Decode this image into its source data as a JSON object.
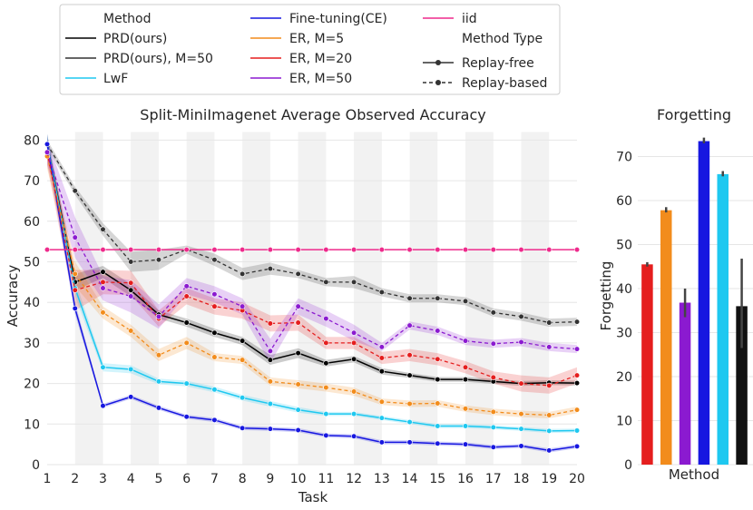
{
  "legend": {
    "method_header": "Method",
    "type_header": "Method Type",
    "replay_free": "Replay-free",
    "replay_based": "Replay-based"
  },
  "chart_data": [
    {
      "type": "line",
      "title": "Split-MiniImagenet Average Observed Accuracy",
      "xlabel": "Task",
      "ylabel": "Accuracy",
      "xlim": [
        1,
        20
      ],
      "ylim": [
        0,
        82
      ],
      "x_ticks": [
        1,
        2,
        3,
        4,
        5,
        6,
        7,
        8,
        9,
        10,
        11,
        12,
        13,
        14,
        15,
        16,
        17,
        18,
        19,
        20
      ],
      "y_ticks": [
        0,
        10,
        20,
        30,
        40,
        50,
        60,
        70,
        80
      ],
      "x": [
        1,
        2,
        3,
        4,
        5,
        6,
        7,
        8,
        9,
        10,
        11,
        12,
        13,
        14,
        15,
        16,
        17,
        18,
        19,
        20
      ],
      "series": [
        {
          "name": "PRD(ours)",
          "color": "#000000",
          "style": "solid",
          "values": [
            79,
            45,
            47.5,
            43,
            37,
            35,
            32.5,
            30.5,
            25.8,
            27.5,
            25,
            26,
            23,
            22,
            21,
            21,
            20.5,
            20,
            20.2,
            20.1
          ],
          "band": [
            2.5,
            2,
            1.5,
            1.5,
            1,
            1,
            1,
            1,
            1.2,
            1.2,
            0.8,
            0.8,
            0.8,
            0.6,
            0.6,
            0.6,
            0.6,
            0.6,
            0.6,
            0.6
          ]
        },
        {
          "name": "PRD(ours), M=50",
          "color": "#333333",
          "style": "dashed",
          "values": [
            79,
            67.5,
            58,
            50,
            50.5,
            53,
            50.5,
            47,
            48.3,
            47,
            45,
            45,
            42.5,
            41,
            41,
            40.3,
            37.5,
            36.5,
            35,
            35.2
          ],
          "band": [
            1,
            1,
            1.5,
            2.5,
            2.5,
            1,
            1.5,
            1.5,
            1.5,
            1,
            1,
            1.5,
            1,
            1,
            1,
            1,
            1,
            1,
            1,
            1
          ]
        },
        {
          "name": "LwF",
          "color": "#1ec8f0",
          "style": "solid",
          "values": [
            79,
            43.5,
            24,
            23.5,
            20.5,
            20,
            18.5,
            16.5,
            15,
            13.5,
            12.5,
            12.5,
            11.5,
            10.5,
            9.5,
            9.5,
            9.2,
            8.8,
            8.3,
            8.4
          ],
          "band": [
            2.5,
            2,
            1,
            1,
            0.7,
            0.7,
            0.7,
            0.7,
            0.7,
            0.7,
            0.5,
            0.5,
            0.5,
            0.5,
            0.5,
            0.5,
            0.5,
            0.5,
            0.5,
            0.5
          ]
        },
        {
          "name": "Fine-tuning(CE)",
          "color": "#1717e0",
          "style": "solid",
          "values": [
            79,
            38.5,
            14.5,
            16.7,
            14,
            11.8,
            11,
            9,
            8.8,
            8.5,
            7.2,
            7,
            5.5,
            5.5,
            5.2,
            5,
            4.3,
            4.6,
            3.5,
            4.5
          ],
          "band": [
            2.5,
            1.5,
            0.5,
            0.5,
            0.5,
            0.5,
            0.5,
            0.5,
            0.5,
            0.5,
            0.5,
            0.5,
            0.5,
            0.5,
            0.5,
            0.5,
            0.5,
            0.5,
            0.5,
            0.5
          ]
        },
        {
          "name": "ER, M=5",
          "color": "#f28c1c",
          "style": "dashed",
          "values": [
            76,
            47,
            37.5,
            33,
            27,
            30,
            26.5,
            25.8,
            20.5,
            19.8,
            19,
            18,
            15.5,
            15,
            15.1,
            13.8,
            13,
            12.5,
            12.2,
            13.5
          ],
          "band": [
            3,
            3,
            1.5,
            1.5,
            1.5,
            1.5,
            1,
            1,
            1,
            1,
            1,
            1,
            0.8,
            0.8,
            0.8,
            0.8,
            0.8,
            0.8,
            0.8,
            0.8
          ]
        },
        {
          "name": "ER, M=20",
          "color": "#e51e1e",
          "style": "dashed",
          "values": [
            77,
            43,
            45,
            44.8,
            36,
            41.5,
            39,
            38,
            34.8,
            35,
            30,
            30,
            26.3,
            27,
            26,
            24,
            21.5,
            20,
            19.5,
            22
          ],
          "band": [
            3,
            5,
            3,
            3,
            2,
            2,
            2,
            2,
            2,
            2,
            1.5,
            1.5,
            1.5,
            1.5,
            1.5,
            1.5,
            1.5,
            2,
            2,
            2
          ]
        },
        {
          "name": "ER, M=50",
          "color": "#8b1ad0",
          "style": "dashed",
          "values": [
            77,
            56,
            43.5,
            41.5,
            36.5,
            44,
            42,
            39,
            28,
            39,
            36,
            32.5,
            29,
            34.3,
            33,
            30.5,
            29.8,
            30.2,
            29,
            28.5
          ],
          "band": [
            3,
            5,
            3,
            4,
            3,
            2,
            2,
            2,
            3,
            2,
            2,
            2,
            1,
            1,
            1,
            1,
            1,
            1,
            1,
            1
          ]
        },
        {
          "name": "iid",
          "color": "#ee2a8b",
          "style": "solid",
          "values": [
            53,
            53,
            53,
            53,
            53,
            53,
            53,
            53,
            53,
            53,
            53,
            53,
            53,
            53,
            53,
            53,
            53,
            53,
            53,
            53
          ],
          "band": [
            0,
            0,
            0,
            0,
            0,
            0,
            0,
            0,
            0,
            0,
            0,
            0,
            0,
            0,
            0,
            0,
            0,
            0,
            0,
            0
          ]
        }
      ]
    },
    {
      "type": "bar",
      "title": "Forgetting",
      "xlabel": "Method",
      "ylabel": "Forgetting",
      "ylim": [
        0,
        76
      ],
      "y_ticks": [
        0,
        10,
        20,
        30,
        40,
        50,
        60,
        70
      ],
      "bars": [
        {
          "name": "ER, M=20",
          "color": "#e51e1e",
          "value": 45.5,
          "err": [
            45,
            46
          ]
        },
        {
          "name": "ER, M=5",
          "color": "#f28c1c",
          "value": 57.8,
          "err": [
            57.3,
            58.5
          ]
        },
        {
          "name": "ER, M=50",
          "color": "#8b1ad0",
          "value": 36.8,
          "err": [
            33.5,
            40
          ]
        },
        {
          "name": "Fine-tuning(CE)",
          "color": "#1717e0",
          "value": 73.5,
          "err": [
            73,
            74.3
          ]
        },
        {
          "name": "LwF",
          "color": "#1ec8f0",
          "value": 66,
          "err": [
            65.5,
            66.7
          ]
        },
        {
          "name": "PRD(ours)",
          "color": "#111111",
          "value": 36,
          "err": [
            26.5,
            46.8
          ]
        }
      ]
    }
  ]
}
